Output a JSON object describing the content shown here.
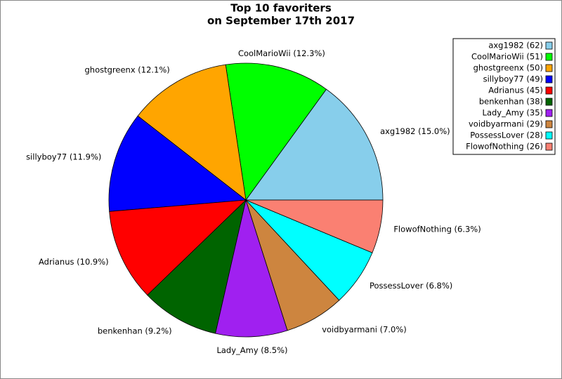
{
  "chart_data": {
    "type": "pie",
    "title": [
      "Top 10 favoriters",
      "on September 17th 2017"
    ],
    "values": [
      62,
      51,
      50,
      49,
      45,
      38,
      35,
      29,
      28,
      26
    ],
    "slice_labels": [
      "axg1982 (15.0%)",
      "CoolMarioWii (12.3%)",
      "ghostgreenx (12.1%)",
      "sillyboy77 (11.9%)",
      "Adrianus (10.9%)",
      "benkenhan (9.2%)",
      "Lady_Amy (8.5%)",
      "voidbyarmani (7.0%)",
      "PossessLover (6.8%)",
      "FlowofNothing (6.3%)"
    ],
    "legend_labels": [
      "axg1982 (62)",
      "CoolMarioWii (51)",
      "ghostgreenx (50)",
      "sillyboy77 (49)",
      "Adrianus (45)",
      "benkenhan (38)",
      "Lady_Amy (35)",
      "voidbyarmani (29)",
      "PossessLover (28)",
      "FlowofNothing (26)"
    ],
    "colors": [
      "#87ceeb",
      "#00ff00",
      "#ffa500",
      "#0000ff",
      "#ff0000",
      "#006400",
      "#a020f0",
      "#cd853f",
      "#00ffff",
      "#fa8072"
    ],
    "legend": "upper right"
  }
}
